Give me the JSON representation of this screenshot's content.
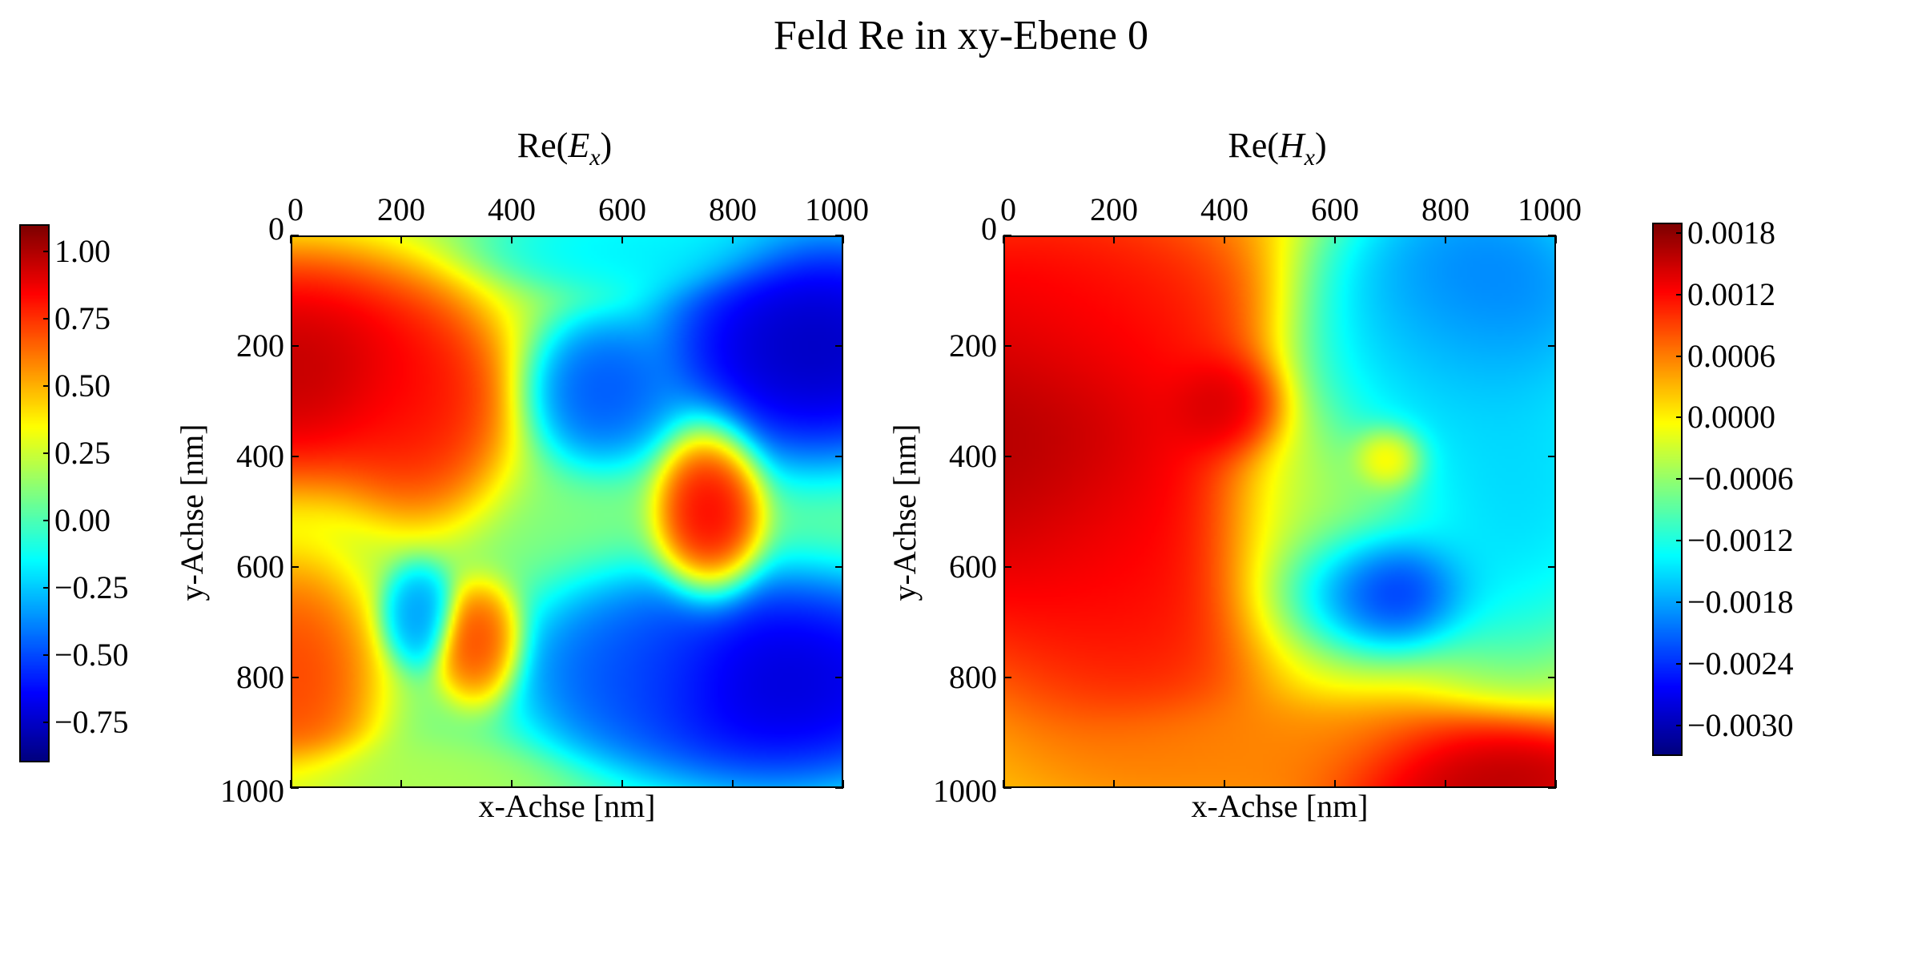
{
  "figure": {
    "title": "Feld Re in xy-Ebene 0"
  },
  "chart_data": [
    {
      "type": "heatmap",
      "title": "Re(E_x)",
      "title_base": "Re(",
      "title_var": "E",
      "title_sub": "x",
      "title_close": ")",
      "xlabel": "x-Achse [nm]",
      "ylabel": "y-Achse [nm]",
      "xlim": [
        0,
        1000
      ],
      "ylim": [
        1000,
        0
      ],
      "x_axis_position": "top",
      "xticks": [
        "0",
        "200",
        "400",
        "600",
        "800",
        "1000"
      ],
      "yticks": [
        "0",
        "200",
        "400",
        "600",
        "800",
        "1000"
      ],
      "colormap": "jet",
      "vmin": -0.9,
      "vmax": 1.1,
      "colorbar": {
        "position": "left",
        "ticks": [
          "1.00",
          "0.75",
          "0.50",
          "0.25",
          "0.00",
          "−0.25",
          "−0.50",
          "−0.75"
        ],
        "tick_values": [
          1.0,
          0.75,
          0.5,
          0.25,
          0.0,
          -0.25,
          -0.5,
          -0.75
        ]
      },
      "field_baseline": 0.1,
      "field_features": [
        {
          "x": 0,
          "y": 240,
          "value": 1.1,
          "rx": 260,
          "ry": 170
        },
        {
          "x": 230,
          "y": 320,
          "value": 0.85,
          "rx": 120,
          "ry": 150
        },
        {
          "x": 760,
          "y": 500,
          "value": 0.95,
          "rx": 70,
          "ry": 120
        },
        {
          "x": 340,
          "y": 740,
          "value": 0.8,
          "rx": 60,
          "ry": 80
        },
        {
          "x": 0,
          "y": 800,
          "value": 0.8,
          "rx": 120,
          "ry": 170
        },
        {
          "x": 230,
          "y": 690,
          "value": -0.4,
          "rx": 50,
          "ry": 70
        },
        {
          "x": 560,
          "y": 280,
          "value": -0.55,
          "rx": 100,
          "ry": 100
        },
        {
          "x": 950,
          "y": 200,
          "value": -0.9,
          "rx": 220,
          "ry": 160
        },
        {
          "x": 880,
          "y": 810,
          "value": -0.85,
          "rx": 270,
          "ry": 150
        },
        {
          "x": 620,
          "y": 790,
          "value": -0.5,
          "rx": 160,
          "ry": 120
        },
        {
          "x": 150,
          "y": 1000,
          "value": 0.2,
          "rx": 250,
          "ry": 60
        },
        {
          "x": 620,
          "y": 20,
          "value": -0.2,
          "rx": 200,
          "ry": 60
        }
      ]
    },
    {
      "type": "heatmap",
      "title": "Re(H_x)",
      "title_base": "Re(",
      "title_var": "H",
      "title_sub": "x",
      "title_close": ")",
      "xlabel": "x-Achse [nm]",
      "ylabel": "y-Achse [nm]",
      "xlim": [
        0,
        1000
      ],
      "ylim": [
        1000,
        0
      ],
      "x_axis_position": "top",
      "xticks": [
        "0",
        "200",
        "400",
        "600",
        "800",
        "1000"
      ],
      "yticks": [
        "0",
        "200",
        "400",
        "600",
        "800",
        "1000"
      ],
      "colormap": "jet",
      "vmin": -0.0033,
      "vmax": 0.0019,
      "colorbar": {
        "position": "right",
        "ticks": [
          "0.0018",
          "0.0012",
          "0.0006",
          "0.0000",
          "−0.0006",
          "−0.0012",
          "−0.0018",
          "−0.0024",
          "−0.0030"
        ],
        "tick_values": [
          0.0018,
          0.0012,
          0.0006,
          0.0,
          -0.0006,
          -0.0012,
          -0.0018,
          -0.0024,
          -0.003
        ]
      },
      "field_baseline": 0.0002,
      "field_features": [
        {
          "x": 0,
          "y": 350,
          "value": 0.0019,
          "rx": 300,
          "ry": 280
        },
        {
          "x": 250,
          "y": 600,
          "value": 0.0013,
          "rx": 250,
          "ry": 250
        },
        {
          "x": 400,
          "y": 310,
          "value": 0.0017,
          "rx": 90,
          "ry": 80
        },
        {
          "x": 160,
          "y": 150,
          "value": 0.0012,
          "rx": 260,
          "ry": 160
        },
        {
          "x": 700,
          "y": 400,
          "value": 0.0008,
          "rx": 55,
          "ry": 50
        },
        {
          "x": 860,
          "y": 100,
          "value": -0.0024,
          "rx": 220,
          "ry": 180
        },
        {
          "x": 660,
          "y": 640,
          "value": -0.0033,
          "rx": 140,
          "ry": 90
        },
        {
          "x": 930,
          "y": 450,
          "value": -0.0018,
          "rx": 200,
          "ry": 260
        },
        {
          "x": 760,
          "y": 230,
          "value": -0.0016,
          "rx": 200,
          "ry": 180
        },
        {
          "x": 860,
          "y": 980,
          "value": 0.0019,
          "rx": 220,
          "ry": 80
        },
        {
          "x": 500,
          "y": 940,
          "value": 0.0006,
          "rx": 300,
          "ry": 80
        },
        {
          "x": 560,
          "y": 560,
          "value": -0.0008,
          "rx": 150,
          "ry": 200
        }
      ]
    }
  ]
}
